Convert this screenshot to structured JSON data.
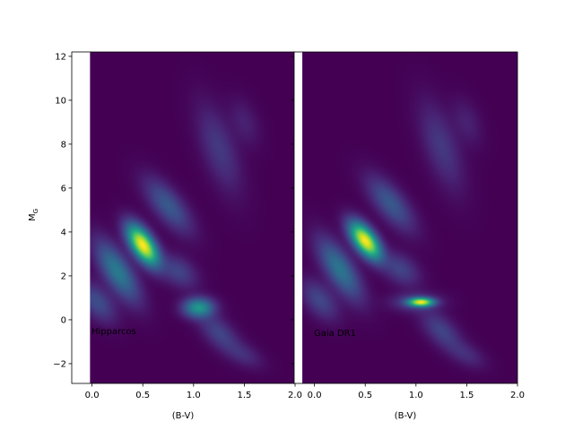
{
  "chart_data": {
    "type": "heatmap",
    "shared_ylabel": "M_G",
    "colormap": "viridis",
    "background_color": "#440154",
    "panels": [
      {
        "annotation": "Hipparcos",
        "xlabel": "(B-V)",
        "xlim": [
          -0.2,
          2.0
        ],
        "ylim": [
          12.2,
          -2.9
        ],
        "x_ticks": [
          0.0,
          0.5,
          1.0,
          1.5,
          2.0
        ],
        "x_tick_labels": [
          "0.0",
          "0.5",
          "1.0",
          "1.5",
          "2.0"
        ],
        "y_ticks": [
          -2,
          0,
          2,
          4,
          6,
          8,
          10,
          12
        ],
        "y_tick_labels": [
          "−2",
          "0",
          "2",
          "4",
          "6",
          "8",
          "10",
          "12"
        ],
        "data_coverage_xmin": -0.02,
        "components": [
          {
            "feature": "main sequence peak",
            "x": 0.5,
            "y": 3.4,
            "sx": 0.1,
            "sy": 0.6,
            "corr": -0.6,
            "amp": 1.0
          },
          {
            "feature": "upper main sequence",
            "x": 0.25,
            "y": 2.2,
            "sx": 0.14,
            "sy": 0.9,
            "corr": -0.7,
            "amp": 0.35
          },
          {
            "feature": "hot main sequence tip",
            "x": 0.05,
            "y": 0.8,
            "sx": 0.12,
            "sy": 0.6,
            "corr": -0.5,
            "amp": 0.18
          },
          {
            "feature": "lower main sequence",
            "x": 0.75,
            "y": 5.2,
            "sx": 0.15,
            "sy": 0.8,
            "corr": -0.7,
            "amp": 0.22
          },
          {
            "feature": "lower main sequence tail",
            "x": 1.25,
            "y": 7.8,
            "sx": 0.14,
            "sy": 1.3,
            "corr": -0.6,
            "amp": 0.12
          },
          {
            "feature": "red dwarf tail",
            "x": 1.5,
            "y": 9.0,
            "sx": 0.1,
            "sy": 0.7,
            "corr": -0.4,
            "amp": 0.06
          },
          {
            "feature": "red clump",
            "x": 1.05,
            "y": 0.55,
            "sx": 0.1,
            "sy": 0.3,
            "corr": 0.0,
            "amp": 0.45
          },
          {
            "feature": "subgiant branch",
            "x": 0.85,
            "y": 2.2,
            "sx": 0.12,
            "sy": 0.5,
            "corr": -0.4,
            "amp": 0.15
          },
          {
            "feature": "red giant branch",
            "x": 1.25,
            "y": -0.6,
            "sx": 0.13,
            "sy": 0.6,
            "corr": -0.6,
            "amp": 0.15
          },
          {
            "feature": "upper red giant branch",
            "x": 1.5,
            "y": -1.6,
            "sx": 0.12,
            "sy": 0.4,
            "corr": -0.5,
            "amp": 0.08
          }
        ]
      },
      {
        "annotation": "Gaia DR1",
        "xlabel": "(B-V)",
        "xlim": [
          -0.2,
          2.0
        ],
        "ylim": [
          12.2,
          -2.9
        ],
        "x_ticks": [
          0.0,
          0.5,
          1.0,
          1.5,
          2.0
        ],
        "x_tick_labels": [
          "0.0",
          "0.5",
          "1.0",
          "1.5",
          "2.0"
        ],
        "y_ticks": [
          -2,
          0,
          2,
          4,
          6,
          8,
          10,
          12
        ],
        "y_tick_labels": [
          "−2",
          "0",
          "2",
          "4",
          "6",
          "8",
          "10",
          "12"
        ],
        "data_coverage_xmin": -0.12,
        "components": [
          {
            "feature": "main sequence peak",
            "x": 0.5,
            "y": 3.6,
            "sx": 0.1,
            "sy": 0.55,
            "corr": -0.6,
            "amp": 1.0
          },
          {
            "feature": "upper main sequence",
            "x": 0.25,
            "y": 2.3,
            "sx": 0.14,
            "sy": 0.9,
            "corr": -0.7,
            "amp": 0.33
          },
          {
            "feature": "hot main sequence tip",
            "x": 0.05,
            "y": 0.9,
            "sx": 0.12,
            "sy": 0.6,
            "corr": -0.5,
            "amp": 0.16
          },
          {
            "feature": "lower main sequence",
            "x": 0.75,
            "y": 5.3,
            "sx": 0.15,
            "sy": 0.8,
            "corr": -0.7,
            "amp": 0.22
          },
          {
            "feature": "lower main sequence tail",
            "x": 1.25,
            "y": 7.9,
            "sx": 0.14,
            "sy": 1.3,
            "corr": -0.6,
            "amp": 0.12
          },
          {
            "feature": "red dwarf tail",
            "x": 1.5,
            "y": 9.0,
            "sx": 0.1,
            "sy": 0.7,
            "corr": -0.4,
            "amp": 0.06
          },
          {
            "feature": "red clump",
            "x": 1.05,
            "y": 0.8,
            "sx": 0.08,
            "sy": 0.13,
            "corr": 0.0,
            "amp": 0.85
          },
          {
            "feature": "red clump halo",
            "x": 1.0,
            "y": 0.8,
            "sx": 0.16,
            "sy": 0.28,
            "corr": 0.0,
            "amp": 0.15
          },
          {
            "feature": "subgiant branch",
            "x": 0.85,
            "y": 2.3,
            "sx": 0.12,
            "sy": 0.5,
            "corr": -0.4,
            "amp": 0.15
          },
          {
            "feature": "red giant branch",
            "x": 1.25,
            "y": -0.5,
            "sx": 0.13,
            "sy": 0.6,
            "corr": -0.6,
            "amp": 0.15
          },
          {
            "feature": "upper red giant branch",
            "x": 1.5,
            "y": -1.6,
            "sx": 0.12,
            "sy": 0.4,
            "corr": -0.5,
            "amp": 0.08
          }
        ]
      }
    ]
  }
}
